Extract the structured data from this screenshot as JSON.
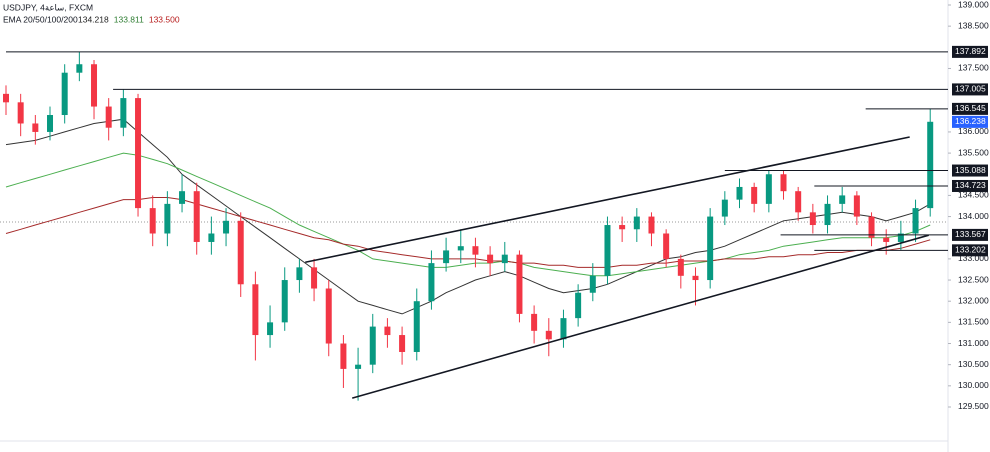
{
  "chart_data": {
    "type": "candlestick",
    "title": "USDJPY, 4ساعة, FXCM",
    "indicator": {
      "label": "EMA 20/50/100/200",
      "values": [
        "134.218",
        "133.811",
        "133.500"
      ],
      "colors": [
        "#222222",
        "#2e7d32",
        "#b71c1c"
      ]
    },
    "ylim": [
      128.72,
      139.118
    ],
    "yticks": [
      {
        "value": 139,
        "label": "139.000"
      },
      {
        "value": 138.5,
        "label": "138.500"
      },
      {
        "value": 137.5,
        "label": "137.500"
      },
      {
        "value": 136,
        "label": "136.000"
      },
      {
        "value": 135.5,
        "label": "135.500"
      },
      {
        "value": 134.5,
        "label": "134.500"
      },
      {
        "value": 134,
        "label": "134.000"
      },
      {
        "value": 133,
        "label": "133.000"
      },
      {
        "value": 132.5,
        "label": "132.500"
      },
      {
        "value": 132,
        "label": "132.000"
      },
      {
        "value": 131.5,
        "label": "131.500"
      },
      {
        "value": 131,
        "label": "131.000"
      },
      {
        "value": 130.5,
        "label": "130.500"
      },
      {
        "value": 130,
        "label": "130.000"
      },
      {
        "value": 129.5,
        "label": "129.500"
      }
    ],
    "up_color": "#089981",
    "down_color": "#f23645",
    "open": [
      136.9,
      136.7,
      136.2,
      136.0,
      136.4,
      137.4,
      137.6,
      136.6,
      136.1,
      136.8,
      134.2,
      133.6,
      134.3,
      134.6,
      133.4,
      133.6,
      133.9,
      132.4,
      131.2,
      131.5,
      132.5,
      132.8,
      132.3,
      131.0,
      130.4,
      130.5,
      131.4,
      131.2,
      130.8,
      132.0,
      132.9,
      133.2,
      133.3,
      133.1,
      132.9,
      133.1,
      131.7,
      131.3,
      131.1,
      131.6,
      132.2,
      132.6,
      133.8,
      133.7,
      134.0,
      133.6,
      133.0,
      132.6,
      132.5,
      134.0,
      134.4,
      134.7,
      134.3,
      135.0,
      134.6,
      134.1,
      133.8,
      134.3,
      134.5,
      134.0,
      133.5,
      133.4,
      133.6,
      134.2
    ],
    "high": [
      137.1,
      136.9,
      136.4,
      136.6,
      137.6,
      137.892,
      137.7,
      136.8,
      137.0,
      136.9,
      134.5,
      134.6,
      135.0,
      134.8,
      134.0,
      134.2,
      134.1,
      132.7,
      131.9,
      132.8,
      133.0,
      133.0,
      132.5,
      131.2,
      130.9,
      131.7,
      131.6,
      131.4,
      132.3,
      133.2,
      133.5,
      133.7,
      133.5,
      133.3,
      133.4,
      133.2,
      131.9,
      131.6,
      131.8,
      132.4,
      132.9,
      134.0,
      134.0,
      134.2,
      134.1,
      133.7,
      133.1,
      132.8,
      134.2,
      134.6,
      134.9,
      134.8,
      135.1,
      135.1,
      134.7,
      134.3,
      134.5,
      134.7,
      134.6,
      134.1,
      133.7,
      133.9,
      134.4,
      136.55
    ],
    "low": [
      136.4,
      135.9,
      135.7,
      135.8,
      136.2,
      137.2,
      136.3,
      135.8,
      135.9,
      134.0,
      133.3,
      133.3,
      134.1,
      133.1,
      133.1,
      133.3,
      132.1,
      130.6,
      130.9,
      131.3,
      132.2,
      132.0,
      130.7,
      129.95,
      129.65,
      130.3,
      130.9,
      130.5,
      130.6,
      131.8,
      132.7,
      132.9,
      132.8,
      132.6,
      132.7,
      131.5,
      131.0,
      130.7,
      130.9,
      131.4,
      132.0,
      132.4,
      133.4,
      133.4,
      133.3,
      132.8,
      132.3,
      131.9,
      132.3,
      133.8,
      134.2,
      134.1,
      134.1,
      134.4,
      133.9,
      133.6,
      133.6,
      134.1,
      133.8,
      133.3,
      133.1,
      133.2,
      133.4,
      134.0
    ],
    "close": [
      136.7,
      136.2,
      136.0,
      136.4,
      137.4,
      137.6,
      136.6,
      136.1,
      136.8,
      134.2,
      133.6,
      134.3,
      134.6,
      133.4,
      133.6,
      133.9,
      132.4,
      131.2,
      131.5,
      132.5,
      132.8,
      132.3,
      131.0,
      130.4,
      130.5,
      131.4,
      131.2,
      130.8,
      132.0,
      132.9,
      133.2,
      133.3,
      133.1,
      132.9,
      133.1,
      131.7,
      131.3,
      131.1,
      131.6,
      132.2,
      132.6,
      133.8,
      133.7,
      134.0,
      133.6,
      133.0,
      132.6,
      132.5,
      134.0,
      134.4,
      134.7,
      134.3,
      135.0,
      134.6,
      134.1,
      133.8,
      134.3,
      134.5,
      134.0,
      133.5,
      133.4,
      133.6,
      134.2,
      136.24
    ],
    "series": [
      {
        "color": "#333333",
        "values": [
          135.7,
          135.75,
          135.8,
          135.9,
          136.0,
          136.1,
          136.2,
          136.25,
          136.3,
          136.0,
          135.7,
          135.4,
          135.0,
          134.75,
          134.5,
          134.25,
          134.0,
          133.75,
          133.5,
          133.25,
          133.0,
          132.75,
          132.5,
          132.25,
          132.0,
          131.9,
          131.8,
          131.7,
          131.85,
          132.0,
          132.2,
          132.35,
          132.5,
          132.6,
          132.7,
          132.6,
          132.45,
          132.3,
          132.2,
          132.25,
          132.3,
          132.4,
          132.55,
          132.7,
          132.85,
          133.0,
          133.05,
          133.15,
          133.2,
          133.3,
          133.45,
          133.6,
          133.75,
          133.9,
          133.95,
          134.0,
          134.05,
          134.1,
          134.05,
          134.0,
          133.9,
          134.0,
          134.1,
          134.3
        ]
      },
      {
        "color": "#4caf50",
        "values": [
          134.7,
          134.8,
          134.9,
          135.0,
          135.1,
          135.2,
          135.3,
          135.4,
          135.5,
          135.45,
          135.35,
          135.25,
          135.1,
          134.95,
          134.8,
          134.65,
          134.5,
          134.35,
          134.2,
          134.0,
          133.8,
          133.65,
          133.5,
          133.35,
          133.2,
          133.0,
          132.95,
          132.9,
          132.85,
          132.8,
          132.8,
          132.85,
          132.9,
          132.9,
          132.95,
          132.9,
          132.8,
          132.75,
          132.7,
          132.65,
          132.6,
          132.6,
          132.65,
          132.7,
          132.75,
          132.8,
          132.85,
          132.9,
          132.95,
          133.0,
          133.1,
          133.15,
          133.2,
          133.3,
          133.35,
          133.4,
          133.45,
          133.5,
          133.5,
          133.5,
          133.5,
          133.55,
          133.65,
          133.8
        ]
      },
      {
        "color": "#a52a2a",
        "values": [
          133.6,
          133.7,
          133.8,
          133.9,
          134.0,
          134.1,
          134.2,
          134.3,
          134.4,
          134.4,
          134.45,
          134.45,
          134.4,
          134.3,
          134.2,
          134.1,
          134.0,
          133.9,
          133.8,
          133.7,
          133.6,
          133.5,
          133.45,
          133.35,
          133.3,
          133.2,
          133.15,
          133.1,
          133.05,
          133.0,
          133.0,
          133.0,
          133.0,
          132.95,
          132.95,
          132.9,
          132.9,
          132.85,
          132.85,
          132.8,
          132.8,
          132.8,
          132.85,
          132.85,
          132.9,
          132.9,
          132.95,
          132.95,
          132.95,
          133.0,
          133.0,
          133.0,
          133.05,
          133.05,
          133.1,
          133.1,
          133.15,
          133.15,
          133.2,
          133.2,
          133.2,
          133.25,
          133.35,
          133.45
        ]
      }
    ],
    "levels": [
      {
        "value": 137.892,
        "label": "137.892",
        "from": 0
      },
      {
        "value": 137.005,
        "label": "137.005",
        "from": 7.3
      },
      {
        "value": 136.545,
        "label": "136.545",
        "from": 58.6
      },
      {
        "value": 135.088,
        "label": "135.088",
        "from": 49
      },
      {
        "value": 134.723,
        "label": "134.723",
        "from": 55.1
      },
      {
        "value": 133.567,
        "label": "133.567",
        "from": 52.8
      },
      {
        "value": 133.202,
        "label": "133.202",
        "from": 55.1
      }
    ],
    "last_price": {
      "value": 136.238,
      "label": "136.238",
      "color": "#2962ff"
    },
    "trendlines": [
      {
        "from": [
          20.4,
          132.92
        ],
        "to": [
          61.6,
          135.88
        ]
      },
      {
        "from": [
          23.6,
          129.71
        ],
        "to": [
          62.9,
          133.56
        ]
      }
    ]
  }
}
